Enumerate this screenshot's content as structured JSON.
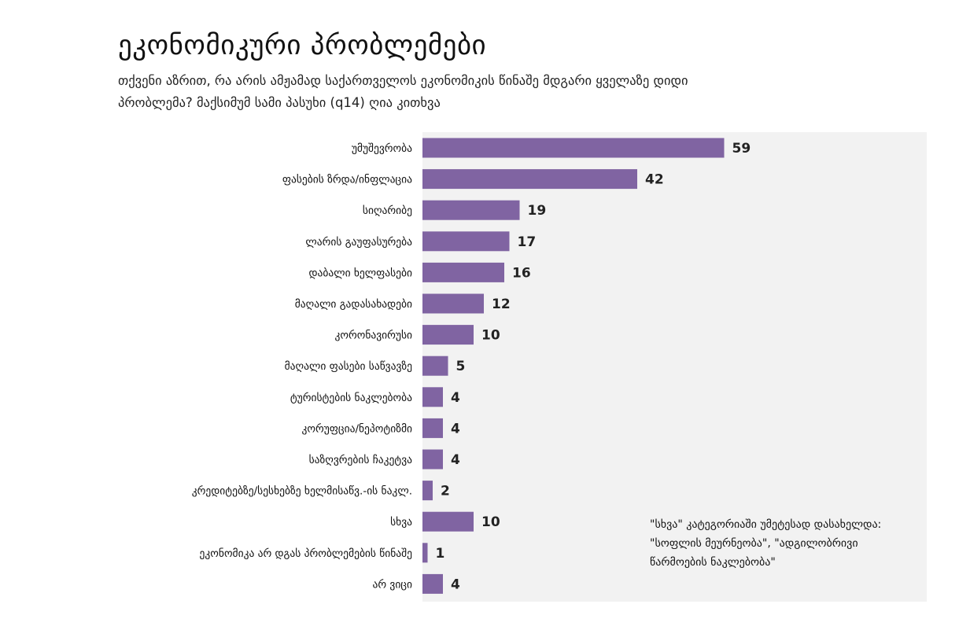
{
  "header": {
    "title": "ეკონომიკური პრობლემები",
    "subtitle": "თქვენი აზრით, რა არის ამჟამად საქართველოს ეკონომიკის წინაშე მდგარი ყველაზე დიდი პრობლემა? მაქსიმუმ სამი პასუხი (q14) ღია კითხვა"
  },
  "note": {
    "text": "\"სხვა\" კატეგორიაში უმეტესად დასახელდა: \"სოფლის მეურნეობა\", \"ადგილობრივი წარმოების ნაკლებობა\""
  },
  "colors": {
    "bar": "#8064a2",
    "plot_background": "#f2f2f2"
  },
  "chart_data": {
    "type": "bar",
    "orientation": "horizontal",
    "title": "ეკონომიკური პრობლემები",
    "xlim": [
      0,
      100
    ],
    "grid": false,
    "categories": [
      "უმუშევრობა",
      "ფასების ზრდა/ინფლაცია",
      "სიღარიბე",
      "ლარის გაუფასურება",
      "დაბალი ხელფასები",
      "მაღალი გადასახადები",
      "კორონავირუსი",
      "მაღალი ფასები საწვავზე",
      "ტურისტების ნაკლებობა",
      "კორუფცია/ნეპოტიზმი",
      "საზღვრების ჩაკეტვა",
      "კრედიტებზე/სესხებზე ხელმისაწვ.-ის ნაკლ.",
      "სხვა",
      "ეკონომიკა არ დგას პრობლემების წინაშე",
      "არ ვიცი"
    ],
    "values": [
      59,
      42,
      19,
      17,
      16,
      12,
      10,
      5,
      4,
      4,
      4,
      2,
      10,
      1,
      4
    ]
  }
}
